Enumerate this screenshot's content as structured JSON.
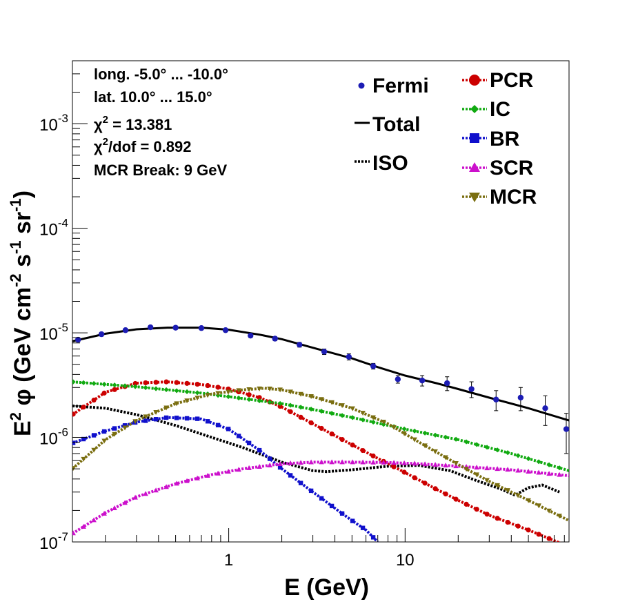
{
  "chart_data": {
    "type": "line",
    "xscale": "log",
    "yscale": "log",
    "xlim": [
      0.13,
      85
    ],
    "ylim": [
      1e-07,
      0.004
    ],
    "grid": false,
    "xlabel": "E (GeV)",
    "ylabel": {
      "prefix": "E",
      "sup1": "2",
      "phi": " φ (GeV cm",
      "sup2": "-2",
      "mid": " s",
      "sup3": "-1",
      "mid2": " sr",
      "sup4": "-1",
      "end": ")"
    },
    "x_ticks": [
      {
        "value": 1,
        "label": "1"
      },
      {
        "value": 10,
        "label": "10"
      }
    ],
    "y_ticks": [
      {
        "value": 1e-07,
        "base": "10",
        "exp": "-7"
      },
      {
        "value": 1e-06,
        "base": "10",
        "exp": "-6"
      },
      {
        "value": 1e-05,
        "base": "10",
        "exp": "-5"
      },
      {
        "value": 0.0001,
        "base": "10",
        "exp": "-4"
      },
      {
        "value": 0.001,
        "base": "10",
        "exp": "-3"
      }
    ],
    "annotations": {
      "long": "long. -5.0° ... -10.0°",
      "lat": "lat. 10.0° ... 15.0°",
      "chi2_sym": "χ",
      "chi2_sup": "2",
      "chi2_val": " = 13.381",
      "chi2dof_sym": "χ",
      "chi2dof_sup": "2",
      "chi2dof_val": "/dof = 0.892",
      "break": "MCR Break:  9 GeV"
    },
    "legend_position": "top-right",
    "fermi": {
      "name": "Fermi",
      "color": "#1c1cb4",
      "points": [
        {
          "x": 0.14,
          "y": 8.6e-06,
          "err": 4e-07
        },
        {
          "x": 0.19,
          "y": 9.7e-06,
          "err": 4e-07
        },
        {
          "x": 0.26,
          "y": 1.06e-05,
          "err": 4e-07
        },
        {
          "x": 0.36,
          "y": 1.13e-05,
          "err": 4e-07
        },
        {
          "x": 0.5,
          "y": 1.12e-05,
          "err": 4e-07
        },
        {
          "x": 0.7,
          "y": 1.11e-05,
          "err": 4e-07
        },
        {
          "x": 0.96,
          "y": 1.06e-05,
          "err": 4e-07
        },
        {
          "x": 1.33,
          "y": 9.4e-06,
          "err": 4e-07
        },
        {
          "x": 1.83,
          "y": 8.8e-06,
          "err": 4e-07
        },
        {
          "x": 2.52,
          "y": 7.7e-06,
          "err": 4e-07
        },
        {
          "x": 3.48,
          "y": 6.6e-06,
          "err": 4e-07
        },
        {
          "x": 4.8,
          "y": 5.9e-06,
          "err": 4e-07
        },
        {
          "x": 6.6,
          "y": 4.8e-06,
          "err": 3e-07
        },
        {
          "x": 9.1,
          "y": 3.6e-06,
          "err": 3e-07
        },
        {
          "x": 12.5,
          "y": 3.5e-06,
          "err": 4e-07
        },
        {
          "x": 17.3,
          "y": 3.3e-06,
          "err": 5e-07
        },
        {
          "x": 23.8,
          "y": 2.9e-06,
          "err": 5e-07
        },
        {
          "x": 32.8,
          "y": 2.3e-06,
          "err": 5e-07
        },
        {
          "x": 45.2,
          "y": 2.4e-06,
          "err": 6e-07
        },
        {
          "x": 62.3,
          "y": 1.9e-06,
          "err": 6e-07
        },
        {
          "x": 82,
          "y": 1.2e-06,
          "err": 5e-07
        }
      ]
    },
    "series": [
      {
        "name": "Total",
        "color": "#000000",
        "style": "solid",
        "marker": "none",
        "x": [
          0.13,
          0.2,
          0.3,
          0.45,
          0.7,
          1.0,
          1.5,
          2.0,
          3.0,
          5.0,
          7.0,
          10,
          15,
          20,
          30,
          50,
          85
        ],
        "y": [
          8.3e-06,
          9.8e-06,
          1.08e-05,
          1.12e-05,
          1.12e-05,
          1.07e-05,
          9.6e-06,
          8.7e-06,
          7.2e-06,
          5.7e-06,
          4.7e-06,
          3.9e-06,
          3.3e-06,
          2.9e-06,
          2.4e-06,
          1.9e-06,
          1.45e-06
        ]
      },
      {
        "name": "ISO",
        "color": "#000000",
        "style": "dotted",
        "marker": "none",
        "x": [
          0.13,
          0.2,
          0.3,
          0.5,
          0.8,
          1.2,
          2.0,
          3.0,
          3.6,
          5.0,
          8.0,
          12,
          18,
          25,
          35,
          42,
          50,
          60,
          75
        ],
        "y": [
          2e-06,
          1.9e-06,
          1.65e-06,
          1.3e-06,
          1e-06,
          8e-07,
          5.8e-07,
          4.8e-07,
          4.7e-07,
          4.9e-07,
          5.3e-07,
          5.4e-07,
          4.8e-07,
          3.9e-07,
          3.2e-07,
          2.8e-07,
          3.3e-07,
          3.5e-07,
          3e-07
        ]
      },
      {
        "name": "PCR",
        "color": "#cc0000",
        "style": "dotted",
        "marker": "circle",
        "x": [
          0.13,
          0.2,
          0.3,
          0.45,
          0.7,
          1.0,
          1.5,
          2.0,
          3.0,
          5.0,
          7.0,
          10,
          15,
          20,
          30,
          50,
          85
        ],
        "y": [
          1.65e-06,
          2.7e-06,
          3.3e-06,
          3.4e-06,
          3.2e-06,
          2.9e-06,
          2.4e-06,
          1.95e-06,
          1.35e-06,
          8.5e-07,
          6.3e-07,
          4.6e-07,
          3.2e-07,
          2.5e-07,
          1.8e-07,
          1.3e-07,
          9e-08
        ]
      },
      {
        "name": "IC",
        "color": "#11aa11",
        "style": "dotted",
        "marker": "diamond",
        "x": [
          0.13,
          0.3,
          0.7,
          1.0,
          2.0,
          3.0,
          5.0,
          10,
          20,
          40,
          85
        ],
        "y": [
          3.4e-06,
          3.05e-06,
          2.65e-06,
          2.45e-06,
          2.1e-06,
          1.85e-06,
          1.55e-06,
          1.2e-06,
          9.5e-07,
          7e-07,
          4.8e-07
        ]
      },
      {
        "name": "BR",
        "color": "#1010cc",
        "style": "dotted",
        "marker": "square",
        "x": [
          0.13,
          0.2,
          0.3,
          0.45,
          0.7,
          1.0,
          1.5,
          2.0,
          3.0,
          4.0,
          5.0,
          6.0,
          7.0
        ],
        "y": [
          8.8e-07,
          1.15e-06,
          1.4e-06,
          1.55e-06,
          1.5e-06,
          1.2e-06,
          7.5e-07,
          5e-07,
          3e-07,
          2.1e-07,
          1.6e-07,
          1.3e-07,
          1e-07
        ]
      },
      {
        "name": "SCR",
        "color": "#cc10cc",
        "style": "dotted",
        "marker": "triangle-up",
        "x": [
          0.13,
          0.2,
          0.3,
          0.5,
          0.8,
          1.2,
          2.0,
          3.0,
          5.0,
          8.0,
          12,
          20,
          40,
          85
        ],
        "y": [
          1.2e-07,
          1.9e-07,
          2.7e-07,
          3.6e-07,
          4.4e-07,
          5e-07,
          5.6e-07,
          5.8e-07,
          5.8e-07,
          5.75e-07,
          5.6e-07,
          5.3e-07,
          4.9e-07,
          4.3e-07
        ]
      },
      {
        "name": "MCR",
        "color": "#7a6e10",
        "style": "dotted",
        "marker": "triangle-down",
        "x": [
          0.13,
          0.2,
          0.3,
          0.5,
          0.8,
          1.2,
          1.6,
          2.0,
          3.0,
          5.0,
          8.0,
          12,
          20,
          30,
          50,
          85
        ],
        "y": [
          5e-07,
          9.5e-07,
          1.45e-06,
          2.1e-06,
          2.6e-06,
          2.85e-06,
          2.95e-06,
          2.85e-06,
          2.45e-06,
          1.9e-06,
          1.35e-06,
          9e-07,
          5.5e-07,
          3.8e-07,
          2.5e-07,
          1.6e-07
        ]
      }
    ]
  }
}
